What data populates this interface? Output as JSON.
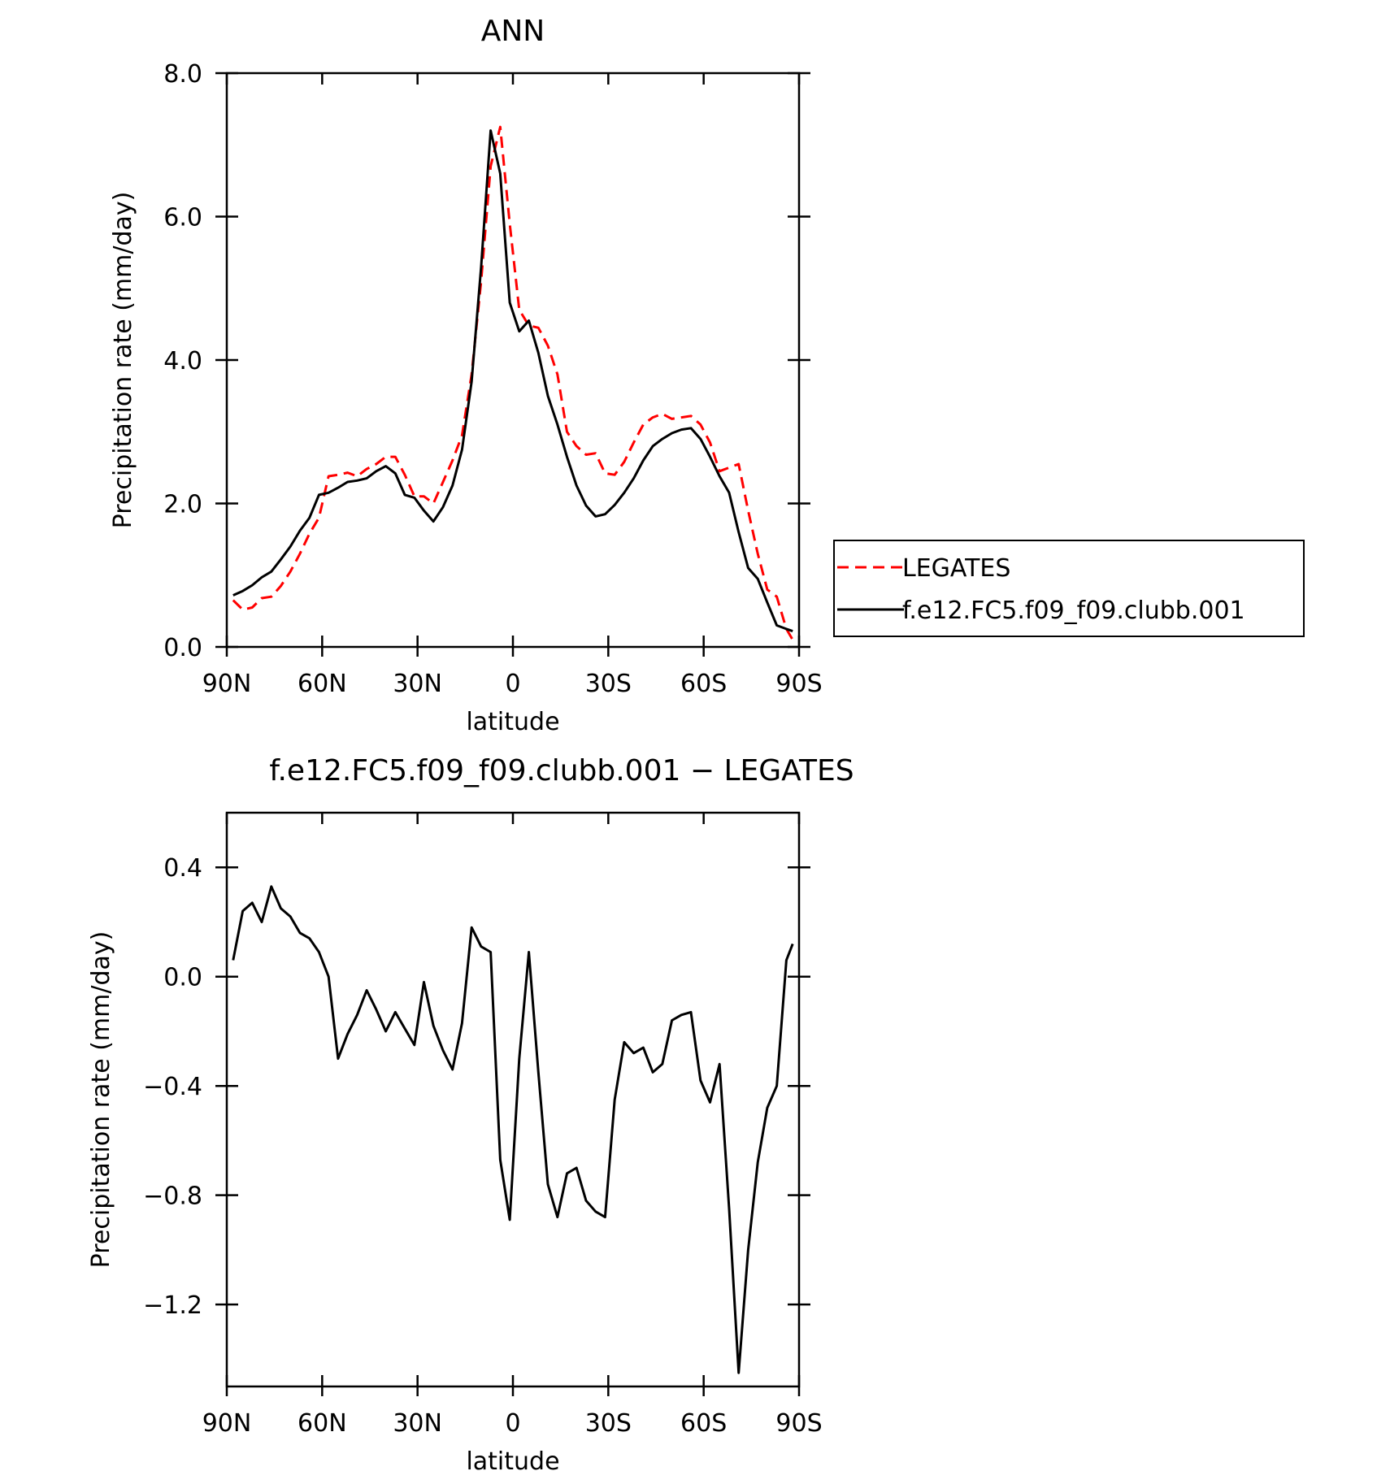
{
  "chart_data": [
    {
      "type": "line",
      "title": "ANN",
      "xlabel": "latitude",
      "ylabel": "Precipitation rate (mm/day)",
      "x": [
        88,
        85,
        82,
        79,
        76,
        73,
        70,
        67,
        64,
        61,
        58,
        55,
        52,
        49,
        46,
        43,
        40,
        37,
        34,
        31,
        28,
        25,
        22,
        19,
        16,
        13,
        10,
        7,
        4,
        1,
        -2,
        -5,
        -8,
        -11,
        -14,
        -17,
        -20,
        -23,
        -26,
        -29,
        -32,
        -35,
        -38,
        -41,
        -44,
        -47,
        -50,
        -53,
        -56,
        -59,
        -62,
        -65,
        -68,
        -71,
        -74,
        -77,
        -80,
        -83,
        -86,
        -88
      ],
      "series": [
        {
          "name": "LEGATES",
          "color": "#ff0000",
          "style": "dashed",
          "values": [
            0.65,
            0.52,
            0.55,
            0.68,
            0.7,
            0.85,
            1.05,
            1.3,
            1.58,
            1.8,
            2.38,
            2.4,
            2.43,
            2.38,
            2.48,
            2.55,
            2.65,
            2.65,
            2.4,
            2.1,
            2.1,
            2.0,
            2.3,
            2.6,
            2.95,
            3.8,
            5.1,
            6.7,
            7.25,
            5.9,
            4.7,
            4.48,
            4.45,
            4.2,
            3.8,
            3.0,
            2.8,
            2.68,
            2.7,
            2.42,
            2.4,
            2.58,
            2.85,
            3.1,
            3.2,
            3.25,
            3.18,
            3.2,
            3.22,
            3.1,
            2.85,
            2.45,
            2.5,
            2.55,
            1.9,
            1.3,
            0.8,
            0.7,
            0.25,
            0.1
          ]
        },
        {
          "name": "f.e12.FC5.f09_f09.clubb.001",
          "color": "#000000",
          "style": "solid",
          "values": [
            0.72,
            0.78,
            0.86,
            0.97,
            1.05,
            1.22,
            1.4,
            1.62,
            1.8,
            2.12,
            2.15,
            2.22,
            2.3,
            2.32,
            2.35,
            2.45,
            2.52,
            2.42,
            2.12,
            2.08,
            1.9,
            1.75,
            1.95,
            2.25,
            2.75,
            3.7,
            5.3,
            7.2,
            6.6,
            4.8,
            4.4,
            4.55,
            4.1,
            3.5,
            3.1,
            2.65,
            2.25,
            1.97,
            1.82,
            1.85,
            1.98,
            2.15,
            2.35,
            2.6,
            2.8,
            2.9,
            2.98,
            3.03,
            3.05,
            2.9,
            2.65,
            2.38,
            2.15,
            1.6,
            1.1,
            0.95,
            0.62,
            0.3,
            0.25,
            0.22
          ]
        }
      ],
      "xlim": [
        90,
        -90
      ],
      "xticks": [
        {
          "value": 90,
          "label": "90N"
        },
        {
          "value": 60,
          "label": "60N"
        },
        {
          "value": 30,
          "label": "30N"
        },
        0,
        {
          "value": -30,
          "label": "30S"
        },
        {
          "value": -60,
          "label": "60S"
        },
        {
          "value": -90,
          "label": "90S"
        }
      ],
      "ylim": [
        0,
        8
      ],
      "yticks": [
        {
          "value": 0,
          "label": "0.0"
        },
        {
          "value": 2,
          "label": "2.0"
        },
        {
          "value": 4,
          "label": "4.0"
        },
        {
          "value": 6,
          "label": "6.0"
        },
        {
          "value": 8,
          "label": "8.0"
        }
      ],
      "legend": "right"
    },
    {
      "type": "line",
      "title": "f.e12.FC5.f09_f09.clubb.001 − LEGATES",
      "xlabel": "latitude",
      "ylabel": "Precipitation rate (mm/day)",
      "x": [
        88,
        85,
        82,
        79,
        76,
        73,
        70,
        67,
        64,
        61,
        58,
        55,
        52,
        49,
        46,
        43,
        40,
        37,
        34,
        31,
        28,
        25,
        22,
        19,
        16,
        13,
        10,
        7,
        4,
        1,
        -2,
        -5,
        -8,
        -11,
        -14,
        -17,
        -20,
        -23,
        -26,
        -29,
        -32,
        -35,
        -38,
        -41,
        -44,
        -47,
        -50,
        -53,
        -56,
        -59,
        -62,
        -65,
        -68,
        -71,
        -74,
        -77,
        -80,
        -83,
        -86,
        -88
      ],
      "values": [
        0.06,
        0.24,
        0.27,
        0.2,
        0.33,
        0.25,
        0.22,
        0.16,
        0.14,
        0.09,
        0.0,
        -0.3,
        -0.21,
        -0.14,
        -0.05,
        -0.12,
        -0.2,
        -0.13,
        -0.19,
        -0.25,
        -0.02,
        -0.18,
        -0.27,
        -0.34,
        -0.17,
        0.18,
        0.11,
        0.09,
        -0.67,
        -0.89,
        -0.3,
        0.09,
        -0.35,
        -0.76,
        -0.88,
        -0.72,
        -0.7,
        -0.82,
        -0.86,
        -0.88,
        -0.45,
        -0.24,
        -0.28,
        -0.26,
        -0.35,
        -0.32,
        -0.16,
        -0.14,
        -0.13,
        -0.38,
        -0.46,
        -0.32,
        -0.85,
        -1.45,
        -1.0,
        -0.68,
        -0.48,
        -0.4,
        0.06,
        0.12
      ],
      "color": "#000000",
      "xlim": [
        90,
        -90
      ],
      "xticks": [
        {
          "value": 90,
          "label": "90N"
        },
        {
          "value": 60,
          "label": "60N"
        },
        {
          "value": 30,
          "label": "30N"
        },
        0,
        {
          "value": -30,
          "label": "30S"
        },
        {
          "value": -60,
          "label": "60S"
        },
        {
          "value": -90,
          "label": "90S"
        }
      ],
      "ylim": [
        -1.5,
        0.6
      ],
      "yticks": [
        {
          "value": -1.2,
          "label": "−1.2"
        },
        {
          "value": -0.8,
          "label": "−0.8"
        },
        {
          "value": -0.4,
          "label": "−0.4"
        },
        {
          "value": 0,
          "label": "0.0"
        },
        0.4
      ]
    }
  ]
}
